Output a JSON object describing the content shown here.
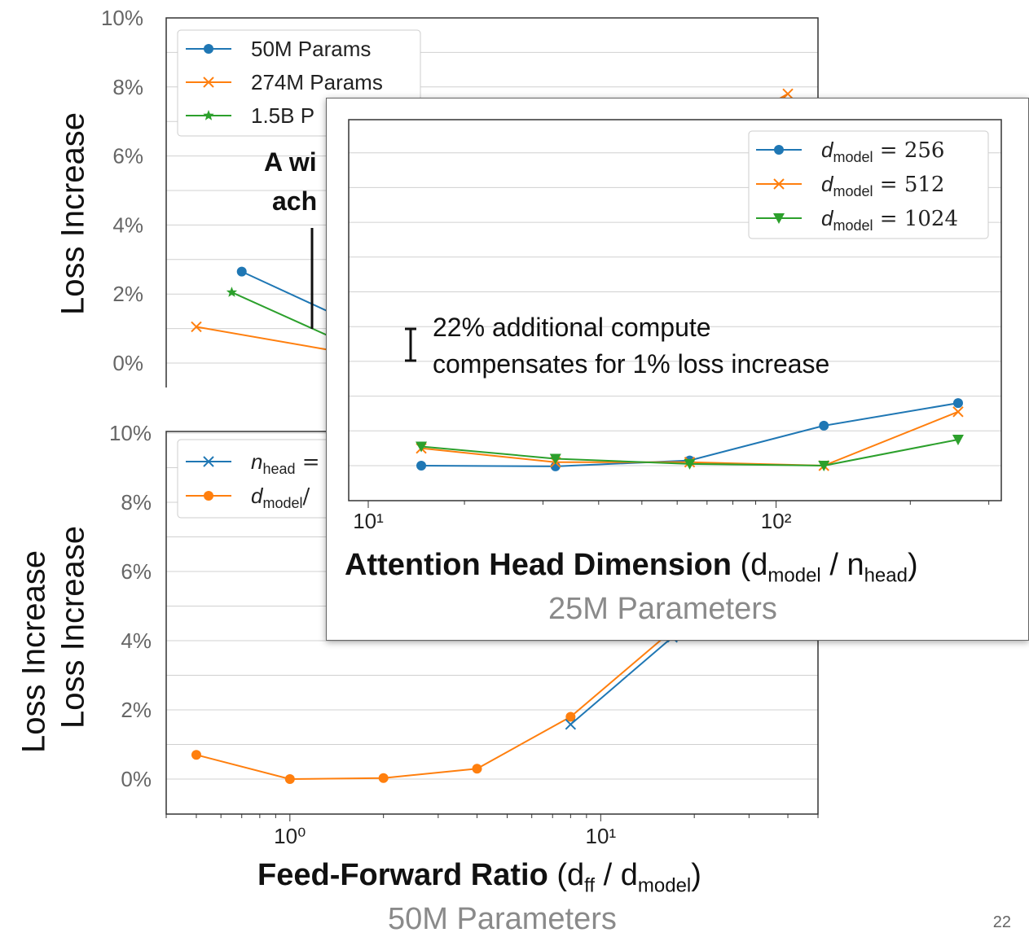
{
  "slide": {
    "page_number": "22"
  },
  "top_chart": {
    "ylabel": "Loss Increase",
    "yticks": [
      "0%",
      "2%",
      "4%",
      "6%",
      "8%",
      "10%"
    ],
    "legend": [
      "50M Params",
      "274M Params",
      "1.5B P"
    ],
    "annotation_lines": [
      "A wi",
      "ach"
    ]
  },
  "bottom_chart": {
    "ylabel_back": "Loss Increase",
    "ylabel_front": "Loss Increase",
    "yticks": [
      "0%",
      "2%",
      "4%",
      "6%",
      "8%",
      "10%"
    ],
    "xticks": [
      "10⁰",
      "10¹"
    ],
    "legend": [
      {
        "var": "n",
        "sub": "head",
        "rest": " ="
      },
      {
        "var": "d",
        "sub": "model",
        "rest": "/"
      }
    ],
    "xtitle_bold": "Feed-Forward Ratio",
    "xtitle_paren": "(d",
    "xtitle_sub1": "ff",
    "xtitle_mid": " / d",
    "xtitle_sub2": "model",
    "xtitle_close": ")",
    "subtitle": "50M Parameters"
  },
  "inset_chart": {
    "legend": [
      {
        "var": "d",
        "sub": "model",
        "rest": " = 256"
      },
      {
        "var": "d",
        "sub": "model",
        "rest": " = 512"
      },
      {
        "var": "d",
        "sub": "model",
        "rest": " = 1024"
      }
    ],
    "annotation": [
      "22% additional compute",
      "compensates for 1% loss increase"
    ],
    "xticks": [
      "10¹",
      "10²"
    ],
    "xtitle_bold": "Attention Head Dimension",
    "xtitle_paren": "(d",
    "xtitle_sub1": "model",
    "xtitle_mid": " / n",
    "xtitle_sub2": "head",
    "xtitle_close": ")",
    "subtitle": "25M Parameters"
  },
  "colors": {
    "blue": "#1f77b4",
    "orange": "#ff7f0e",
    "green": "#2ca02c",
    "grid": "#d0d0d0"
  },
  "chart_data": [
    {
      "type": "line",
      "title": "",
      "ylabel": "Loss Increase",
      "ylim": [
        0,
        10
      ],
      "x_scale": "log",
      "series": [
        {
          "name": "50M Params",
          "color": "#1f77b4",
          "marker": "circle",
          "x": [
            0.7,
            1.4
          ],
          "y": [
            2.65,
            1.4
          ]
        },
        {
          "name": "274M Params",
          "color": "#ff7f0e",
          "marker": "x",
          "x": [
            0.5,
            1.4,
            40
          ],
          "y": [
            1.05,
            0.35,
            7.8
          ]
        },
        {
          "name": "1.5B P",
          "color": "#2ca02c",
          "marker": "star",
          "x": [
            0.65,
            1.4
          ],
          "y": [
            2.05,
            0.7
          ]
        }
      ]
    },
    {
      "type": "line",
      "title": "",
      "xlabel": "Feed-Forward Ratio (dff / dmodel)",
      "ylabel": "Loss Increase",
      "ylim": [
        0,
        10
      ],
      "x_scale": "log",
      "xlim": [
        0.4,
        50
      ],
      "series": [
        {
          "name": "nhead =",
          "color": "#1f77b4",
          "marker": "x",
          "x": [
            8,
            17
          ],
          "y": [
            1.58,
            4.1
          ]
        },
        {
          "name": "dmodel/",
          "color": "#ff7f0e",
          "marker": "circle",
          "x": [
            0.5,
            1,
            2,
            4,
            8,
            17
          ],
          "y": [
            0.7,
            0.0,
            0.03,
            0.3,
            1.8,
            4.3
          ]
        }
      ]
    },
    {
      "type": "line",
      "title": "",
      "xlabel": "Attention Head Dimension (dmodel / nhead)",
      "x_scale": "log",
      "xlim": [
        11,
        320
      ],
      "ylim": [
        -0.5,
        10
      ],
      "series": [
        {
          "name": "dmodel = 256",
          "color": "#1f77b4",
          "marker": "circle",
          "x": [
            16,
            32,
            64,
            128,
            256
          ],
          "y": [
            0.0,
            -0.02,
            0.15,
            1.15,
            1.8
          ]
        },
        {
          "name": "dmodel = 512",
          "color": "#ff7f0e",
          "marker": "x",
          "x": [
            16,
            32,
            64,
            128,
            256
          ],
          "y": [
            0.5,
            0.1,
            0.1,
            0.0,
            1.55
          ]
        },
        {
          "name": "dmodel = 1024",
          "color": "#2ca02c",
          "marker": "triangle-down",
          "x": [
            16,
            32,
            64,
            128,
            256
          ],
          "y": [
            0.55,
            0.2,
            0.05,
            0.0,
            0.75
          ]
        }
      ]
    }
  ]
}
